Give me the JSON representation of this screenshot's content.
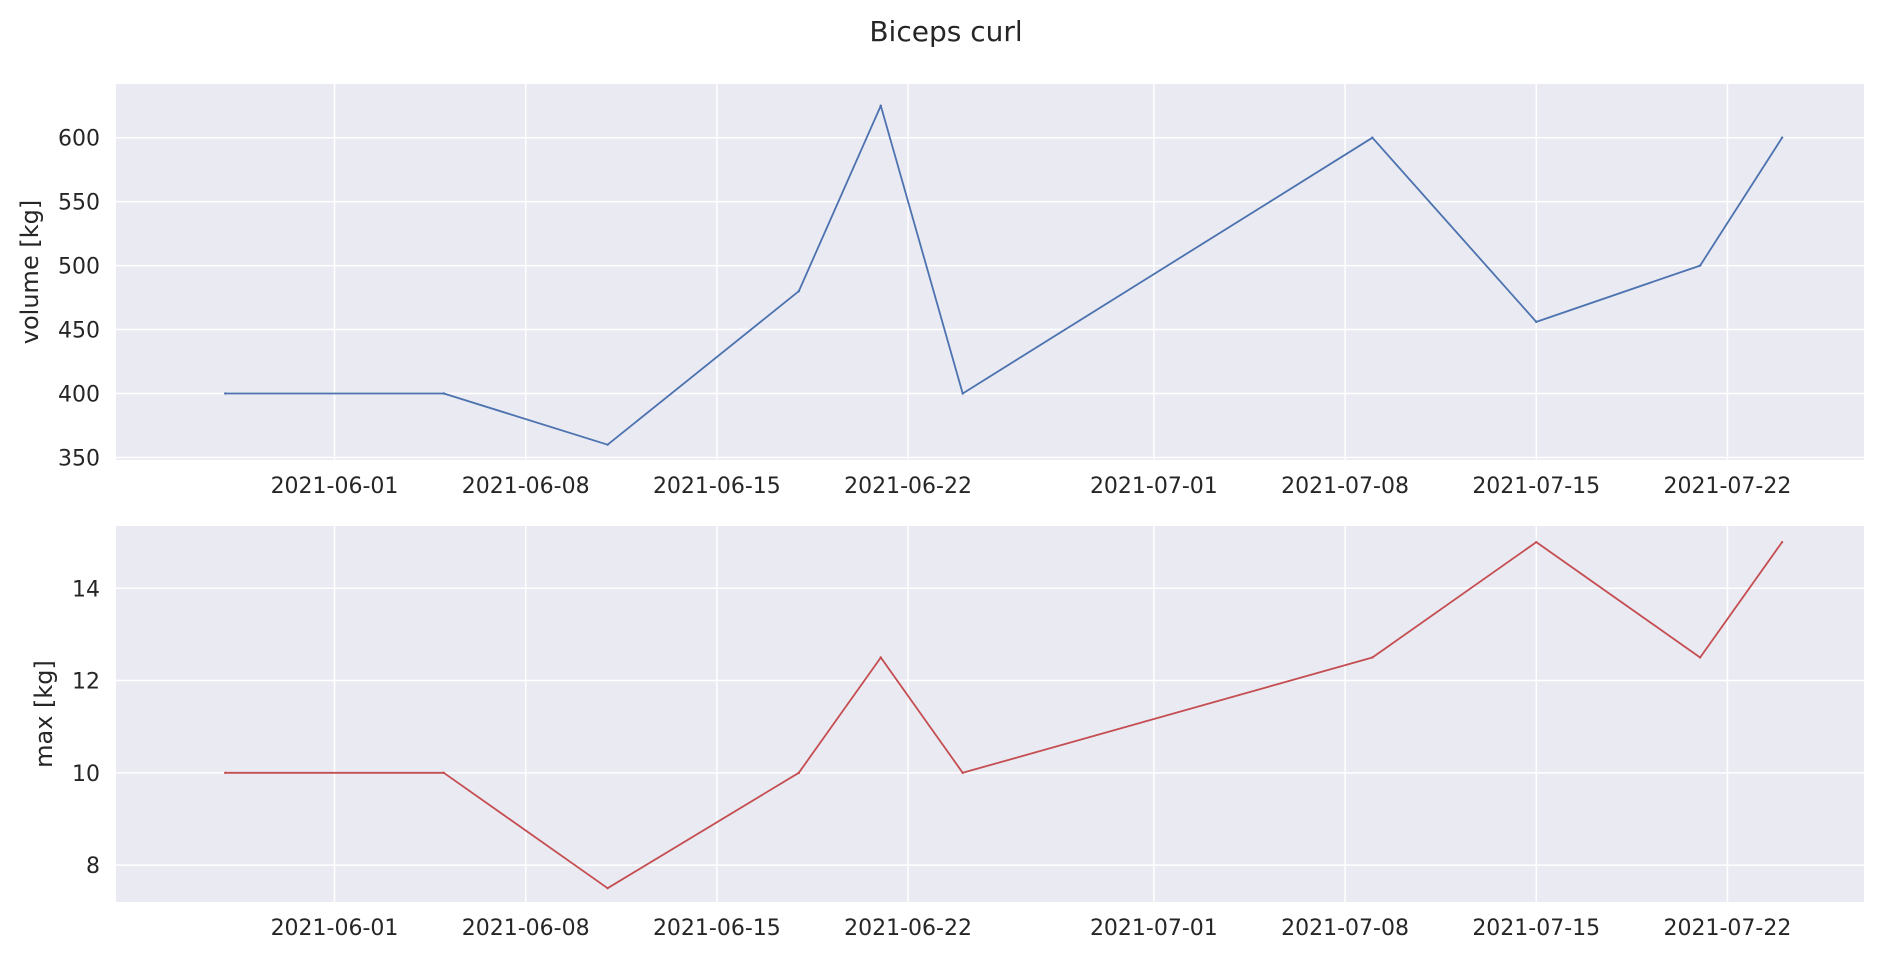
{
  "chart_data": {
    "type": "line",
    "title": "Biceps curl",
    "x": [
      "2021-05-28",
      "2021-06-05",
      "2021-06-11",
      "2021-06-18",
      "2021-06-21",
      "2021-06-24",
      "2021-07-09",
      "2021-07-15",
      "2021-07-21",
      "2021-07-24"
    ],
    "x_ticks": [
      "2021-06-01",
      "2021-06-08",
      "2021-06-15",
      "2021-06-22",
      "2021-07-01",
      "2021-07-08",
      "2021-07-15",
      "2021-07-22"
    ],
    "xlim": [
      "2021-05-24",
      "2021-07-27"
    ],
    "grid": true,
    "subplots": [
      {
        "ylabel": "volume [kg]",
        "ylim": [
          348,
          642
        ],
        "y_ticks": [
          350,
          400,
          450,
          500,
          550,
          600
        ],
        "color": "#4c72b0",
        "values": [
          400,
          400,
          360,
          480,
          625,
          400,
          600,
          456,
          500,
          600
        ]
      },
      {
        "ylabel": "max [kg]",
        "ylim": [
          7.2,
          15.35
        ],
        "y_ticks": [
          8,
          10,
          12,
          14
        ],
        "color": "#c44e52",
        "values": [
          10,
          10,
          7.5,
          10,
          12.5,
          10,
          12.5,
          15,
          12.5,
          15
        ]
      }
    ]
  }
}
